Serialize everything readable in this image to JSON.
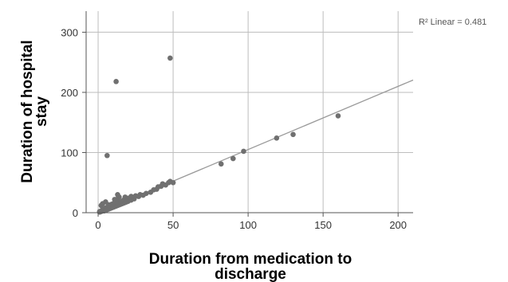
{
  "chart_data": {
    "type": "scatter",
    "title": "",
    "xlabel_lines": [
      "Duration from medication to",
      "discharge"
    ],
    "ylabel_lines": [
      "Duration of hospital",
      "stay"
    ],
    "xlim": [
      -8,
      210
    ],
    "ylim": [
      0,
      335
    ],
    "xticks": [
      0,
      50,
      100,
      150,
      200
    ],
    "yticks": [
      0,
      100,
      200,
      300
    ],
    "grid": true,
    "fit_label": "R² Linear = 0.481",
    "fit_line": {
      "intercept": 0,
      "slope": 1.05
    },
    "colors": {
      "points": "#707070",
      "fit_line": "#9a9a9a",
      "grid": "#bdbdbd",
      "axis": "#555555"
    },
    "points": [
      [
        1,
        1
      ],
      [
        1,
        2
      ],
      [
        2,
        2
      ],
      [
        2,
        3
      ],
      [
        3,
        3
      ],
      [
        3,
        4
      ],
      [
        3,
        5
      ],
      [
        4,
        3
      ],
      [
        4,
        5
      ],
      [
        4,
        6
      ],
      [
        5,
        4
      ],
      [
        5,
        6
      ],
      [
        5,
        8
      ],
      [
        6,
        5
      ],
      [
        6,
        7
      ],
      [
        6,
        9
      ],
      [
        7,
        6
      ],
      [
        7,
        8
      ],
      [
        7,
        10
      ],
      [
        8,
        7
      ],
      [
        8,
        9
      ],
      [
        8,
        12
      ],
      [
        9,
        8
      ],
      [
        9,
        11
      ],
      [
        9,
        14
      ],
      [
        10,
        9
      ],
      [
        10,
        12
      ],
      [
        10,
        15
      ],
      [
        11,
        10
      ],
      [
        11,
        13
      ],
      [
        12,
        11
      ],
      [
        12,
        14
      ],
      [
        12,
        17
      ],
      [
        13,
        12
      ],
      [
        13,
        16
      ],
      [
        14,
        13
      ],
      [
        14,
        18
      ],
      [
        15,
        14
      ],
      [
        15,
        17
      ],
      [
        16,
        15
      ],
      [
        16,
        19
      ],
      [
        17,
        16
      ],
      [
        17,
        21
      ],
      [
        18,
        17
      ],
      [
        18,
        22
      ],
      [
        19,
        18
      ],
      [
        20,
        19
      ],
      [
        20,
        24
      ],
      [
        22,
        21
      ],
      [
        22,
        27
      ],
      [
        24,
        23
      ],
      [
        25,
        28
      ],
      [
        27,
        27
      ],
      [
        28,
        30
      ],
      [
        30,
        29
      ],
      [
        32,
        32
      ],
      [
        35,
        34
      ],
      [
        37,
        38
      ],
      [
        39,
        39
      ],
      [
        40,
        43
      ],
      [
        42,
        44
      ],
      [
        43,
        48
      ],
      [
        45,
        46
      ],
      [
        47,
        50
      ],
      [
        48,
        52
      ],
      [
        50,
        50
      ],
      [
        2,
        12
      ],
      [
        3,
        15
      ],
      [
        5,
        18
      ],
      [
        7,
        13
      ],
      [
        12,
        22
      ],
      [
        14,
        26
      ],
      [
        13,
        30
      ],
      [
        18,
        26
      ],
      [
        11,
        22
      ],
      [
        6,
        95
      ],
      [
        12,
        218
      ],
      [
        48,
        257
      ],
      [
        82,
        81
      ],
      [
        90,
        90
      ],
      [
        97,
        102
      ],
      [
        119,
        124
      ],
      [
        130,
        130
      ],
      [
        160,
        161
      ]
    ]
  }
}
